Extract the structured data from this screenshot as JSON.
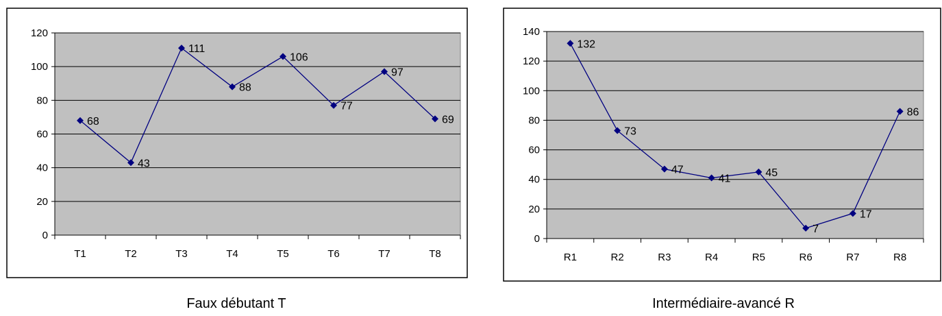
{
  "chart_data": [
    {
      "type": "line",
      "title": "",
      "caption": "Faux débutant T",
      "categories": [
        "T1",
        "T2",
        "T3",
        "T4",
        "T5",
        "T6",
        "T7",
        "T8"
      ],
      "values": [
        68,
        43,
        111,
        88,
        106,
        77,
        97,
        69
      ],
      "ylim": [
        0,
        120
      ],
      "yticks": [
        0,
        20,
        40,
        60,
        80,
        100,
        120
      ],
      "grid": true,
      "legend": "none",
      "colors": {
        "plot_bg": "#c0c0c0",
        "series": "#000080"
      }
    },
    {
      "type": "line",
      "title": "",
      "caption": "Intermédiaire-avancé R",
      "categories": [
        "R1",
        "R2",
        "R3",
        "R4",
        "R5",
        "R6",
        "R7",
        "R8"
      ],
      "values": [
        132,
        73,
        47,
        41,
        45,
        7,
        17,
        86
      ],
      "ylim": [
        0,
        140
      ],
      "yticks": [
        0,
        20,
        40,
        60,
        80,
        100,
        120,
        140
      ],
      "grid": true,
      "legend": "none",
      "colors": {
        "plot_bg": "#c0c0c0",
        "series": "#000080"
      }
    }
  ]
}
